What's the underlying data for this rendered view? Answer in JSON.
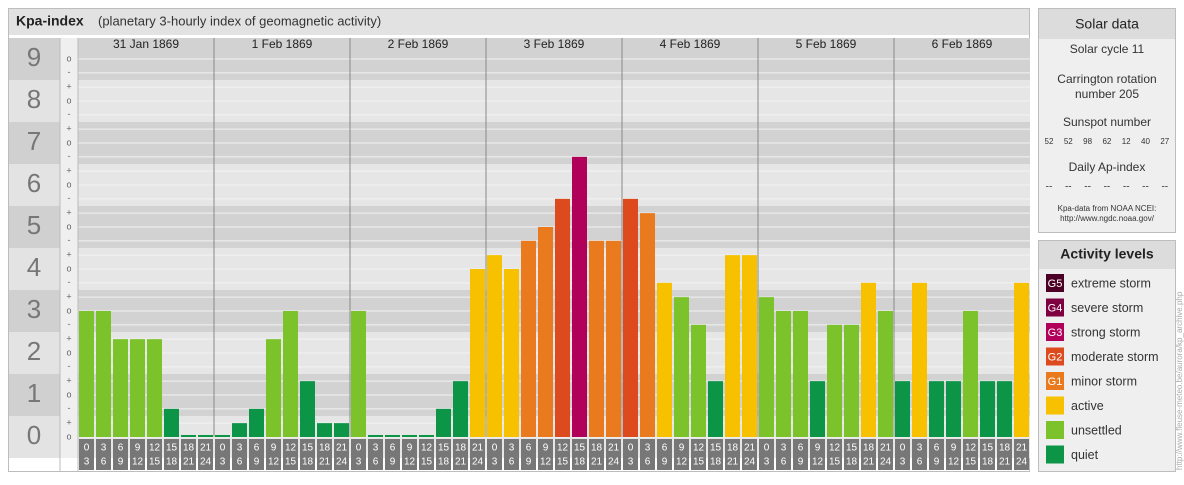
{
  "chart_data": {
    "type": "bar",
    "title": "Kpa-index",
    "subtitle": "(planetary 3-hourly index of geomagnetic activity)",
    "ylim": [
      0,
      9.5
    ],
    "yticks": [
      0,
      1,
      2,
      3,
      4,
      5,
      6,
      7,
      8,
      9
    ],
    "yminorticks": [
      {
        "value": 0,
        "label": "o"
      },
      {
        "value": 0.33,
        "label": "+"
      },
      {
        "value": 0.67,
        "label": "-"
      },
      {
        "value": 1,
        "label": "o"
      },
      {
        "value": 1.33,
        "label": "+"
      },
      {
        "value": 1.67,
        "label": "-"
      },
      {
        "value": 2,
        "label": "o"
      },
      {
        "value": 2.33,
        "label": "+"
      },
      {
        "value": 2.67,
        "label": "-"
      },
      {
        "value": 3,
        "label": "o"
      },
      {
        "value": 3.33,
        "label": "+"
      },
      {
        "value": 3.67,
        "label": "-"
      },
      {
        "value": 4,
        "label": "o"
      },
      {
        "value": 4.33,
        "label": "+"
      },
      {
        "value": 4.67,
        "label": "-"
      },
      {
        "value": 5,
        "label": "o"
      },
      {
        "value": 5.33,
        "label": "+"
      },
      {
        "value": 5.67,
        "label": "-"
      },
      {
        "value": 6,
        "label": "o"
      },
      {
        "value": 6.33,
        "label": "+"
      },
      {
        "value": 6.67,
        "label": "-"
      },
      {
        "value": 7,
        "label": "o"
      },
      {
        "value": 7.33,
        "label": "+"
      },
      {
        "value": 7.67,
        "label": "-"
      },
      {
        "value": 8,
        "label": "o"
      },
      {
        "value": 8.33,
        "label": "+"
      },
      {
        "value": 8.67,
        "label": "-"
      },
      {
        "value": 9,
        "label": "o"
      }
    ],
    "grid": true,
    "hour_bins": [
      [
        0,
        3
      ],
      [
        3,
        6
      ],
      [
        6,
        9
      ],
      [
        9,
        12
      ],
      [
        12,
        15
      ],
      [
        15,
        18
      ],
      [
        18,
        21
      ],
      [
        21,
        24
      ]
    ],
    "series": [
      {
        "name": "31 Jan 1869",
        "values": [
          3,
          3,
          2.33,
          2.33,
          2.33,
          0.67,
          0,
          0
        ],
        "colors": [
          "#7cc22a",
          "#7cc22a",
          "#7cc22a",
          "#7cc22a",
          "#7cc22a",
          "#0c9447",
          "#0c9447",
          "#0c9447"
        ]
      },
      {
        "name": "1 Feb 1869",
        "values": [
          0,
          0.33,
          0.67,
          2.33,
          3,
          1.33,
          0.33,
          0.33
        ],
        "colors": [
          "#0c9447",
          "#0c9447",
          "#0c9447",
          "#7cc22a",
          "#7cc22a",
          "#0c9447",
          "#0c9447",
          "#0c9447"
        ]
      },
      {
        "name": "2 Feb 1869",
        "values": [
          3,
          0,
          0,
          0,
          0,
          0.67,
          1.33,
          4
        ],
        "colors": [
          "#7cc22a",
          "#0c9447",
          "#0c9447",
          "#0c9447",
          "#0c9447",
          "#0c9447",
          "#0c9447",
          "#f7c100"
        ]
      },
      {
        "name": "3 Feb 1869",
        "values": [
          4.33,
          4,
          4.67,
          5,
          5.67,
          6.67,
          4.67,
          4.67
        ],
        "colors": [
          "#f7c100",
          "#f7c100",
          "#ea7a1e",
          "#ea7a1e",
          "#dd4a1e",
          "#b0005a",
          "#ea7a1e",
          "#ea7a1e"
        ]
      },
      {
        "name": "4 Feb 1869",
        "values": [
          5.67,
          5.33,
          3.67,
          3.33,
          2.67,
          1.33,
          4.33,
          4.33
        ],
        "colors": [
          "#dd4a1e",
          "#ea7a1e",
          "#f7c100",
          "#7cc22a",
          "#7cc22a",
          "#0c9447",
          "#f7c100",
          "#f7c100"
        ]
      },
      {
        "name": "5 Feb 1869",
        "values": [
          3.33,
          3,
          3,
          1.33,
          2.67,
          2.67,
          3.67,
          3
        ],
        "colors": [
          "#7cc22a",
          "#7cc22a",
          "#7cc22a",
          "#0c9447",
          "#7cc22a",
          "#7cc22a",
          "#f7c100",
          "#7cc22a"
        ]
      },
      {
        "name": "6 Feb 1869",
        "values": [
          1.33,
          3.67,
          1.33,
          1.33,
          3,
          1.33,
          1.33,
          3.67
        ],
        "colors": [
          "#0c9447",
          "#f7c100",
          "#0c9447",
          "#0c9447",
          "#7cc22a",
          "#0c9447",
          "#0c9447",
          "#f7c100"
        ]
      }
    ]
  },
  "solar_data": {
    "title": "Solar data",
    "cycle": "Solar cycle 11",
    "carrington": "Carrington rotation number 205",
    "sunspot_title": "Sunspot number",
    "sunspot_numbers": [
      52,
      52,
      98,
      62,
      12,
      40,
      27
    ],
    "ap_title": "Daily Ap-index",
    "ap_values": [
      "--",
      "--",
      "--",
      "--",
      "--",
      "--",
      "--"
    ],
    "source": "Kpa-data from NOAA NCEI:",
    "source_url": "http://www.ngdc.noaa.gov/"
  },
  "activity_levels": {
    "title": "Activity levels",
    "items": [
      {
        "badge": "G5",
        "label": "extreme storm",
        "color": "#4d0025"
      },
      {
        "badge": "G4",
        "label": "severe storm",
        "color": "#7e0040"
      },
      {
        "badge": "G3",
        "label": "strong storm",
        "color": "#b0005a"
      },
      {
        "badge": "G2",
        "label": "moderate storm",
        "color": "#dd4a1e"
      },
      {
        "badge": "G1",
        "label": "minor storm",
        "color": "#ea7a1e"
      },
      {
        "label": "active",
        "color": "#f7c100"
      },
      {
        "label": "unsettled",
        "color": "#7cc22a"
      },
      {
        "label": "quiet",
        "color": "#0c9447"
      }
    ]
  },
  "watermark": "http://www.fleuse-meteo.be/aurora/kp_archive.php"
}
